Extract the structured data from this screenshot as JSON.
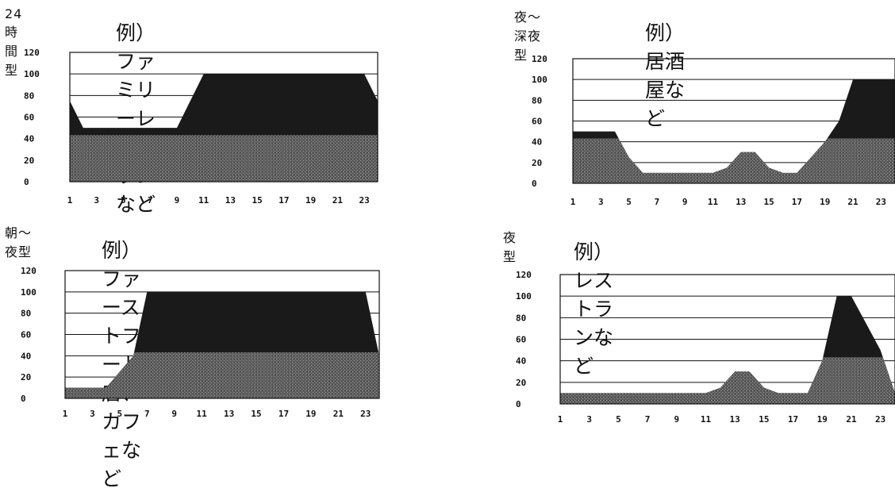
{
  "chart_data": [
    {
      "type": "area",
      "title": "24時間型",
      "subtitle": "例）ファミリーレストランなど",
      "x": [
        1,
        2,
        3,
        4,
        5,
        6,
        7,
        8,
        9,
        10,
        11,
        12,
        13,
        14,
        15,
        16,
        17,
        18,
        19,
        20,
        21,
        22,
        23,
        24
      ],
      "x_tick_labels": [
        "1",
        "3",
        "5",
        "7",
        "9",
        "11",
        "13",
        "15",
        "17",
        "19",
        "21",
        "23"
      ],
      "y_tick_labels": [
        "120",
        "100",
        "80",
        "60",
        "40",
        "20",
        "0"
      ],
      "ylim": [
        0,
        120
      ],
      "values": [
        75,
        50,
        50,
        50,
        50,
        50,
        50,
        50,
        50,
        75,
        100,
        100,
        100,
        100,
        100,
        100,
        100,
        100,
        100,
        100,
        100,
        100,
        100,
        75
      ],
      "grid": true,
      "colors": {
        "area": "#1a1a1a",
        "texture": "#6f6f6f"
      }
    },
    {
      "type": "area",
      "title": "夜〜深夜型",
      "subtitle": "例）居酒屋など",
      "x": [
        1,
        2,
        3,
        4,
        5,
        6,
        7,
        8,
        9,
        10,
        11,
        12,
        13,
        14,
        15,
        16,
        17,
        18,
        19,
        20,
        21,
        22,
        23,
        24
      ],
      "x_tick_labels": [
        "1",
        "3",
        "5",
        "7",
        "9",
        "11",
        "13",
        "15",
        "17",
        "19",
        "21",
        "23"
      ],
      "y_tick_labels": [
        "120",
        "100",
        "80",
        "60",
        "40",
        "20",
        "0"
      ],
      "ylim": [
        0,
        120
      ],
      "values": [
        50,
        50,
        50,
        50,
        25,
        10,
        10,
        10,
        10,
        10,
        10,
        15,
        30,
        30,
        15,
        10,
        10,
        25,
        40,
        60,
        100,
        100,
        100,
        100
      ],
      "grid": true,
      "colors": {
        "area": "#1a1a1a",
        "texture": "#6f6f6f"
      }
    },
    {
      "type": "area",
      "title": "朝〜夜型",
      "subtitle": "例）ファーストフード店、カフェなど",
      "x": [
        1,
        2,
        3,
        4,
        5,
        6,
        7,
        8,
        9,
        10,
        11,
        12,
        13,
        14,
        15,
        16,
        17,
        18,
        19,
        20,
        21,
        22,
        23,
        24
      ],
      "x_tick_labels": [
        "1",
        "3",
        "5",
        "7",
        "9",
        "11",
        "13",
        "15",
        "17",
        "19",
        "21",
        "23"
      ],
      "y_tick_labels": [
        "120",
        "100",
        "80",
        "60",
        "40",
        "20",
        "0"
      ],
      "ylim": [
        0,
        120
      ],
      "values": [
        10,
        10,
        10,
        10,
        25,
        40,
        100,
        100,
        100,
        100,
        100,
        100,
        100,
        100,
        100,
        100,
        100,
        100,
        100,
        100,
        100,
        100,
        100,
        40
      ],
      "grid": true,
      "colors": {
        "area": "#1a1a1a",
        "texture": "#6f6f6f"
      }
    },
    {
      "type": "area",
      "title": "夜型",
      "subtitle": "例）レストランなど",
      "x": [
        1,
        2,
        3,
        4,
        5,
        6,
        7,
        8,
        9,
        10,
        11,
        12,
        13,
        14,
        15,
        16,
        17,
        18,
        19,
        20,
        21,
        22,
        23,
        24
      ],
      "x_tick_labels": [
        "1",
        "3",
        "5",
        "7",
        "9",
        "11",
        "13",
        "15",
        "17",
        "19",
        "21",
        "23"
      ],
      "y_tick_labels": [
        "120",
        "100",
        "80",
        "60",
        "40",
        "20",
        "0"
      ],
      "ylim": [
        0,
        120
      ],
      "values": [
        10,
        10,
        10,
        10,
        10,
        10,
        10,
        10,
        10,
        10,
        10,
        15,
        30,
        30,
        15,
        10,
        10,
        10,
        40,
        100,
        100,
        75,
        50,
        10
      ],
      "grid": true,
      "colors": {
        "area": "#1a1a1a",
        "texture": "#6f6f6f"
      }
    }
  ]
}
